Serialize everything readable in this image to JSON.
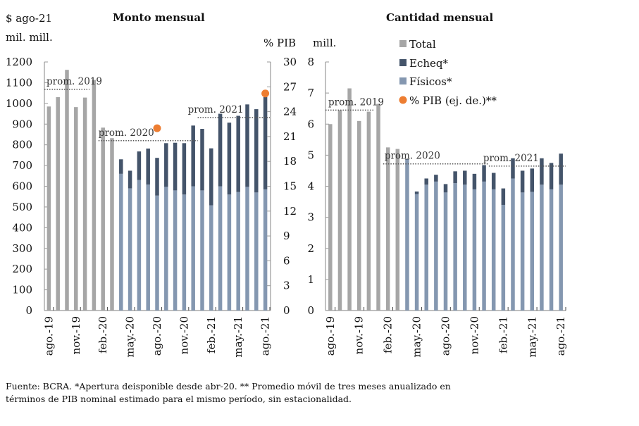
{
  "chart_data": [
    {
      "type": "bar",
      "title": "Monto mensual",
      "ylabel": "$ ago-21 mil. mill.",
      "ylabel_lines": [
        "$ ago-21",
        "mil. mill."
      ],
      "y2label": "% PIB",
      "ylim": [
        0,
        1200
      ],
      "yticks": [
        0,
        100,
        200,
        300,
        400,
        500,
        600,
        700,
        800,
        900,
        1000,
        1100,
        1200
      ],
      "y2lim": [
        0,
        30
      ],
      "y2ticks": [
        0,
        3,
        6,
        9,
        12,
        15,
        18,
        21,
        24,
        27,
        30
      ],
      "categories": [
        "ago-19",
        "sep-19",
        "oct-19",
        "nov-19",
        "dic-19",
        "ene-20",
        "feb-20",
        "mar-20",
        "abr-20",
        "may-20",
        "jun-20",
        "jul-20",
        "ago-20",
        "sep-20",
        "oct-20",
        "nov-20",
        "dic-20",
        "ene-21",
        "feb-21",
        "mar-21",
        "abr-21",
        "may-21",
        "jun-21",
        "jul-21",
        "ago-21"
      ],
      "xtick_labels": [
        "ago.-19",
        "nov.-19",
        "feb.-20",
        "may.-20",
        "ago.-20",
        "nov.-20",
        "feb.-21",
        "may.-21",
        "ago.-21"
      ],
      "series": [
        {
          "name": "Total",
          "values": [
            985,
            1030,
            1162,
            982,
            1028,
            1113,
            883,
            832,
            null,
            null,
            null,
            null,
            null,
            null,
            null,
            null,
            null,
            null,
            null,
            null,
            null,
            null,
            null,
            null,
            null
          ]
        },
        {
          "name": "Físicos*",
          "values": [
            null,
            null,
            null,
            null,
            null,
            null,
            null,
            null,
            660,
            590,
            630,
            608,
            555,
            597,
            580,
            560,
            600,
            580,
            508,
            600,
            560,
            572,
            597,
            570,
            585
          ]
        },
        {
          "name": "Echeq*",
          "values": [
            null,
            null,
            null,
            null,
            null,
            null,
            null,
            null,
            70,
            85,
            138,
            174,
            182,
            211,
            230,
            248,
            293,
            297,
            275,
            350,
            347,
            368,
            398,
            402,
            445
          ]
        }
      ],
      "pib_points": [
        {
          "category": "ago-20",
          "value": 22
        },
        {
          "category": "ago-21",
          "value": 26.2
        }
      ],
      "averages": [
        {
          "label": "prom. 2019",
          "value": 1068,
          "from": "ago-19",
          "to": "dic-19"
        },
        {
          "label": "prom. 2020",
          "value": 820,
          "from": "feb-20",
          "to": "dic-20"
        },
        {
          "label": "prom. 2021",
          "value": 932,
          "from": "ene-21",
          "to": "ago-21"
        }
      ]
    },
    {
      "type": "bar",
      "title": "Cantidad mensual",
      "ylabel": "mill.",
      "ylim": [
        0,
        8
      ],
      "yticks": [
        0,
        1,
        2,
        3,
        4,
        5,
        6,
        7,
        8
      ],
      "categories": [
        "ago-19",
        "sep-19",
        "oct-19",
        "nov-19",
        "dic-19",
        "ene-20",
        "feb-20",
        "mar-20",
        "abr-20",
        "may-20",
        "jun-20",
        "jul-20",
        "ago-20",
        "sep-20",
        "oct-20",
        "nov-20",
        "dic-20",
        "ene-21",
        "feb-21",
        "mar-21",
        "abr-21",
        "may-21",
        "jun-21",
        "jul-21",
        "ago-21"
      ],
      "xtick_labels": [
        "ago.-19",
        "nov.-19",
        "feb.-20",
        "may.-20",
        "ago.-20",
        "nov.-20",
        "feb.-21",
        "may.-21",
        "ago.-21"
      ],
      "series": [
        {
          "name": "Total",
          "values": [
            6.0,
            6.45,
            7.15,
            6.1,
            6.4,
            6.65,
            5.25,
            5.2,
            null,
            null,
            null,
            null,
            null,
            null,
            null,
            null,
            null,
            null,
            null,
            null,
            null,
            null,
            null,
            null,
            null
          ]
        },
        {
          "name": "Físicos*",
          "values": [
            null,
            null,
            null,
            null,
            null,
            null,
            null,
            null,
            4.85,
            3.75,
            4.05,
            4.15,
            3.8,
            4.1,
            4.05,
            3.9,
            4.15,
            3.9,
            3.4,
            4.25,
            3.8,
            3.82,
            4.05,
            3.9,
            4.05
          ]
        },
        {
          "name": "Echeq*",
          "values": [
            null,
            null,
            null,
            null,
            null,
            null,
            null,
            null,
            0.02,
            0.08,
            0.2,
            0.22,
            0.27,
            0.38,
            0.45,
            0.5,
            0.53,
            0.53,
            0.53,
            0.65,
            0.7,
            0.75,
            0.85,
            0.85,
            1.0
          ]
        }
      ],
      "averages": [
        {
          "label": "prom. 2019",
          "value": 6.45,
          "from": "ago-19",
          "to": "dic-19"
        },
        {
          "label": "prom. 2020",
          "value": 4.72,
          "from": "feb-20",
          "to": "dic-20"
        },
        {
          "label": "prom. 2021",
          "value": 4.65,
          "from": "ene-21",
          "to": "ago-21"
        }
      ]
    }
  ],
  "legend": {
    "placement": "top-right",
    "items": [
      {
        "label": "Total",
        "color": "#a6a6a6",
        "shape": "square"
      },
      {
        "label": "Echeq*",
        "color": "#44546a",
        "shape": "square"
      },
      {
        "label": "Físicos*",
        "color": "#8497b0",
        "shape": "square"
      },
      {
        "label": "% PIB (ej. de.)**",
        "color": "#ed7d31",
        "shape": "circle"
      }
    ]
  },
  "colors": {
    "total": "#a6a6a6",
    "echeq": "#44546a",
    "fisicos": "#8497b0",
    "pib": "#ed7d31",
    "axis": "#999999",
    "avg": "#555555"
  },
  "footnote": {
    "line1": "Fuente: BCRA. *Apertura deisponible desde abr-20.  ** Promedio móvil de tres meses anualizado en",
    "line2": "términos de PIB nominal estimado para el mismo período, sin estacionalidad."
  }
}
